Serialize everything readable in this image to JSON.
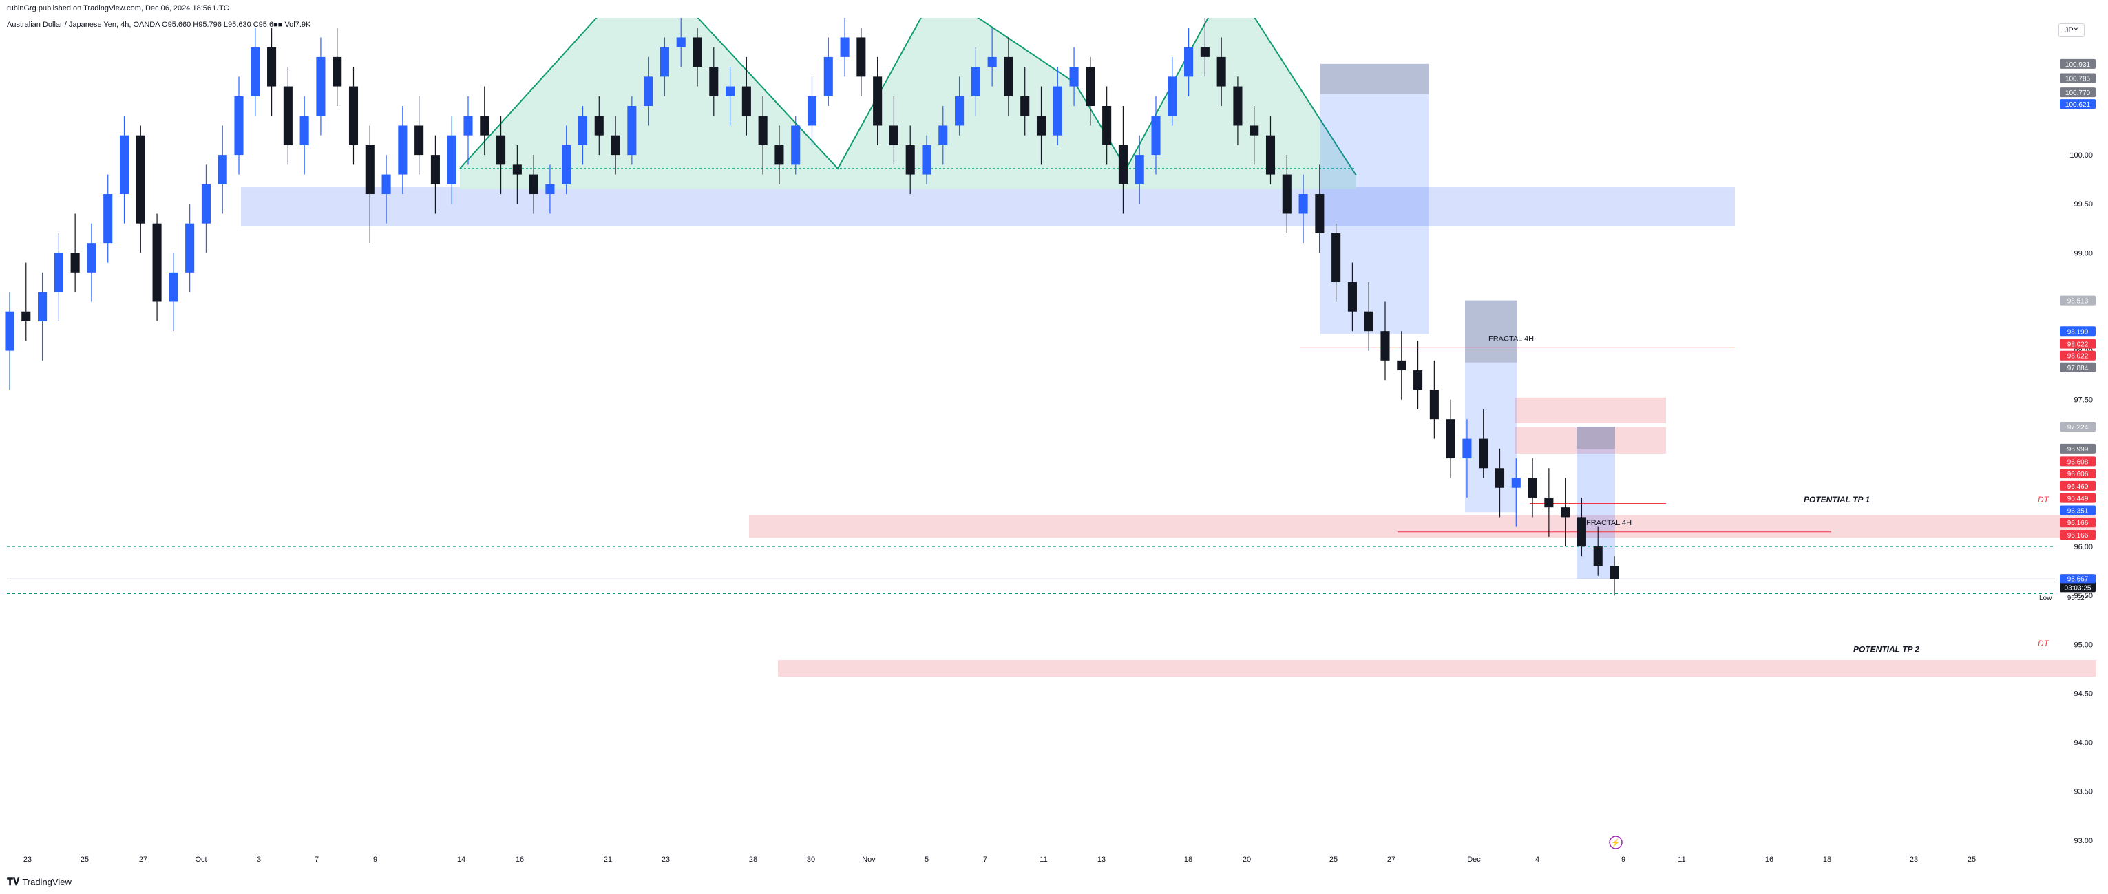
{
  "publisher": "rubinGrg published on TradingView.com, Dec 06, 2024 18:56 UTC",
  "symbol_line": "Australian Dollar / Japanese Yen, 4h, OANDA  O95.660  H95.796  L95.630  C95.6■■  Vol7.9K",
  "currency": "JPY",
  "footer_brand": "TradingView",
  "colors": {
    "up": "#2962ff",
    "down": "#131722",
    "zone_blue": "#c9d5fb",
    "zone_red": "#f9d0d3",
    "pattern": "#119c72",
    "pattern_fill": "#d3efe6",
    "red_line": "#f23645"
  },
  "chart_data": {
    "type": "candlestick",
    "ylim": [
      92.9,
      101.4
    ],
    "grid": false,
    "price_ticks": [
      100.5,
      100.0,
      99.5,
      99.0,
      98.5,
      98.0,
      97.5,
      97.0,
      96.5,
      96.0,
      95.5,
      95.0,
      94.5,
      94.0,
      93.5,
      93.0
    ],
    "date_ticks": [
      "23",
      "25",
      "27",
      "Oct",
      "3",
      "7",
      "9",
      "14",
      "16",
      "21",
      "23",
      "28",
      "30",
      "Nov",
      "5",
      "7",
      "11",
      "13",
      "18",
      "20",
      "25",
      "27",
      "Dec",
      "4",
      "9",
      "11",
      "16",
      "18",
      "23",
      "25"
    ],
    "current_price": "95.667",
    "countdown": "03:03:25",
    "low_label": "Low",
    "low_value": "95.524",
    "price_labels": [
      {
        "text": "100.931",
        "price": 100.93,
        "bg": "#787b86"
      },
      {
        "text": "100.785",
        "price": 100.785,
        "bg": "#787b86"
      },
      {
        "text": "100.770",
        "price": 100.64,
        "bg": "#787b86"
      },
      {
        "text": "100.621",
        "price": 100.52,
        "bg": "#2962ff"
      },
      {
        "text": "98.513",
        "price": 98.513,
        "bg": "#b2b5be"
      },
      {
        "text": "98.199",
        "price": 98.199,
        "bg": "#2962ff"
      },
      {
        "text": "98.022",
        "price": 98.07,
        "bg": "#f23645"
      },
      {
        "text": "98.022",
        "price": 97.95,
        "bg": "#f23645"
      },
      {
        "text": "97.884",
        "price": 97.83,
        "bg": "#787b86"
      },
      {
        "text": "97.224",
        "price": 97.224,
        "bg": "#b2b5be"
      },
      {
        "text": "96.999",
        "price": 97.0,
        "bg": "#787b86"
      },
      {
        "text": "96.608",
        "price": 96.87,
        "bg": "#f23645"
      },
      {
        "text": "96.606",
        "price": 96.745,
        "bg": "#f23645"
      },
      {
        "text": "96.460",
        "price": 96.62,
        "bg": "#f23645"
      },
      {
        "text": "96.449",
        "price": 96.495,
        "bg": "#f23645"
      },
      {
        "text": "96.351",
        "price": 96.37,
        "bg": "#2962ff"
      },
      {
        "text": "96.166",
        "price": 96.245,
        "bg": "#f23645"
      },
      {
        "text": "96.166",
        "price": 96.12,
        "bg": "#f23645"
      },
      {
        "text": "95.667",
        "price": 95.667,
        "bg": "#2962ff"
      }
    ],
    "annotations": {
      "fractal_1": "FRACTAL 4H",
      "fractal_2": "FRACTAL 4H",
      "tp1": "POTENTIAL TP 1",
      "tp2": "POTENTIAL TP 2",
      "dt1": "DT",
      "dt2": "DT"
    },
    "zones": [
      {
        "kind": "blue",
        "x0": "Sep 30",
        "x1": "Dec 12",
        "y0": 99.27,
        "y1": 99.67
      },
      {
        "kind": "red",
        "x0": "Oct 28",
        "x1": "Dec 31",
        "y0": 96.09,
        "y1": 96.32
      },
      {
        "kind": "red",
        "x0": "Oct 29",
        "x1": "Dec 31",
        "y0": 94.67,
        "y1": 94.84
      },
      {
        "kind": "red",
        "x0": "Dec 3",
        "x1": "Dec 10",
        "y0": 97.26,
        "y1": 97.52
      },
      {
        "kind": "red",
        "x0": "Dec 3",
        "x1": "Dec 10",
        "y0": 96.95,
        "y1": 97.22
      }
    ],
    "candles": [
      [
        98.0,
        98.6,
        97.6,
        98.4
      ],
      [
        98.4,
        98.9,
        98.1,
        98.3
      ],
      [
        98.3,
        98.8,
        97.9,
        98.6
      ],
      [
        98.6,
        99.2,
        98.3,
        99.0
      ],
      [
        99.0,
        99.4,
        98.6,
        98.8
      ],
      [
        98.8,
        99.3,
        98.5,
        99.1
      ],
      [
        99.1,
        99.8,
        98.9,
        99.6
      ],
      [
        99.6,
        100.4,
        99.3,
        100.2
      ],
      [
        100.2,
        100.3,
        99.0,
        99.3
      ],
      [
        99.3,
        99.4,
        98.3,
        98.5
      ],
      [
        98.5,
        99.0,
        98.2,
        98.8
      ],
      [
        98.8,
        99.5,
        98.6,
        99.3
      ],
      [
        99.3,
        99.9,
        99.0,
        99.7
      ],
      [
        99.7,
        100.3,
        99.4,
        100.0
      ],
      [
        100.0,
        100.8,
        99.8,
        100.6
      ],
      [
        100.6,
        101.3,
        100.4,
        101.1
      ],
      [
        101.1,
        101.3,
        100.4,
        100.7
      ],
      [
        100.7,
        100.9,
        99.9,
        100.1
      ],
      [
        100.1,
        100.6,
        99.8,
        100.4
      ],
      [
        100.4,
        101.2,
        100.2,
        101.0
      ],
      [
        101.0,
        101.3,
        100.5,
        100.7
      ],
      [
        100.7,
        100.9,
        99.9,
        100.1
      ],
      [
        100.1,
        100.3,
        99.1,
        99.6
      ],
      [
        99.6,
        100.0,
        99.3,
        99.8
      ],
      [
        99.8,
        100.5,
        99.6,
        100.3
      ],
      [
        100.3,
        100.6,
        99.8,
        100.0
      ],
      [
        100.0,
        100.2,
        99.4,
        99.7
      ],
      [
        99.7,
        100.4,
        99.5,
        100.2
      ],
      [
        100.2,
        100.6,
        99.9,
        100.4
      ],
      [
        100.4,
        100.7,
        100.0,
        100.2
      ],
      [
        100.2,
        100.4,
        99.6,
        99.9
      ],
      [
        99.9,
        100.1,
        99.5,
        99.8
      ],
      [
        99.8,
        100.0,
        99.4,
        99.6
      ],
      [
        99.6,
        99.9,
        99.4,
        99.7
      ],
      [
        99.7,
        100.3,
        99.6,
        100.1
      ],
      [
        100.1,
        100.5,
        99.9,
        100.4
      ],
      [
        100.4,
        100.6,
        100.0,
        100.2
      ],
      [
        100.2,
        100.4,
        99.8,
        100.0
      ],
      [
        100.0,
        100.6,
        99.9,
        100.5
      ],
      [
        100.5,
        101.0,
        100.3,
        100.8
      ],
      [
        100.8,
        101.2,
        100.6,
        101.1
      ],
      [
        101.1,
        101.4,
        100.9,
        101.2
      ],
      [
        101.2,
        101.3,
        100.7,
        100.9
      ],
      [
        100.9,
        101.1,
        100.4,
        100.6
      ],
      [
        100.6,
        100.9,
        100.3,
        100.7
      ],
      [
        100.7,
        101.0,
        100.2,
        100.4
      ],
      [
        100.4,
        100.6,
        99.8,
        100.1
      ],
      [
        100.1,
        100.3,
        99.7,
        99.9
      ],
      [
        99.9,
        100.4,
        99.8,
        100.3
      ],
      [
        100.3,
        100.8,
        100.1,
        100.6
      ],
      [
        100.6,
        101.2,
        100.5,
        101.0
      ],
      [
        101.0,
        101.4,
        100.8,
        101.2
      ],
      [
        101.2,
        101.3,
        100.6,
        100.8
      ],
      [
        100.8,
        101.0,
        100.1,
        100.3
      ],
      [
        100.3,
        100.6,
        99.9,
        100.1
      ],
      [
        100.1,
        100.3,
        99.6,
        99.8
      ],
      [
        99.8,
        100.2,
        99.7,
        100.1
      ],
      [
        100.1,
        100.5,
        99.9,
        100.3
      ],
      [
        100.3,
        100.8,
        100.2,
        100.6
      ],
      [
        100.6,
        101.1,
        100.4,
        100.9
      ],
      [
        100.9,
        101.3,
        100.7,
        101.0
      ],
      [
        101.0,
        101.2,
        100.4,
        100.6
      ],
      [
        100.6,
        100.9,
        100.2,
        100.4
      ],
      [
        100.4,
        100.7,
        99.9,
        100.2
      ],
      [
        100.2,
        100.9,
        100.1,
        100.7
      ],
      [
        100.7,
        101.1,
        100.5,
        100.9
      ],
      [
        100.9,
        101.0,
        100.3,
        100.5
      ],
      [
        100.5,
        100.7,
        99.9,
        100.1
      ],
      [
        100.1,
        100.5,
        99.4,
        99.7
      ],
      [
        99.7,
        100.2,
        99.5,
        100.0
      ],
      [
        100.0,
        100.6,
        99.8,
        100.4
      ],
      [
        100.4,
        101.0,
        100.3,
        100.8
      ],
      [
        100.8,
        101.3,
        100.6,
        101.1
      ],
      [
        101.1,
        101.4,
        100.8,
        101.0
      ],
      [
        101.0,
        101.2,
        100.5,
        100.7
      ],
      [
        100.7,
        100.8,
        100.1,
        100.3
      ],
      [
        100.3,
        100.5,
        99.9,
        100.2
      ],
      [
        100.2,
        100.4,
        99.7,
        99.8
      ],
      [
        99.8,
        100.0,
        99.2,
        99.4
      ],
      [
        99.4,
        99.8,
        99.1,
        99.6
      ],
      [
        99.6,
        99.9,
        99.0,
        99.2
      ],
      [
        99.2,
        99.3,
        98.5,
        98.7
      ],
      [
        98.7,
        98.9,
        98.2,
        98.4
      ],
      [
        98.4,
        98.7,
        98.0,
        98.2
      ],
      [
        98.2,
        98.5,
        97.7,
        97.9
      ],
      [
        97.9,
        98.2,
        97.5,
        97.8
      ],
      [
        97.8,
        98.1,
        97.4,
        97.6
      ],
      [
        97.6,
        97.9,
        97.1,
        97.3
      ],
      [
        97.3,
        97.5,
        96.7,
        96.9
      ],
      [
        96.9,
        97.3,
        96.5,
        97.1
      ],
      [
        97.1,
        97.4,
        96.7,
        96.8
      ],
      [
        96.8,
        97.0,
        96.3,
        96.6
      ],
      [
        96.6,
        96.9,
        96.2,
        96.7
      ],
      [
        96.7,
        96.9,
        96.3,
        96.5
      ],
      [
        96.5,
        96.8,
        96.1,
        96.4
      ],
      [
        96.4,
        96.7,
        96.0,
        96.3
      ],
      [
        96.3,
        96.5,
        95.9,
        96.0
      ],
      [
        96.0,
        96.2,
        95.7,
        95.8
      ],
      [
        95.8,
        95.9,
        95.5,
        95.67
      ]
    ]
  }
}
